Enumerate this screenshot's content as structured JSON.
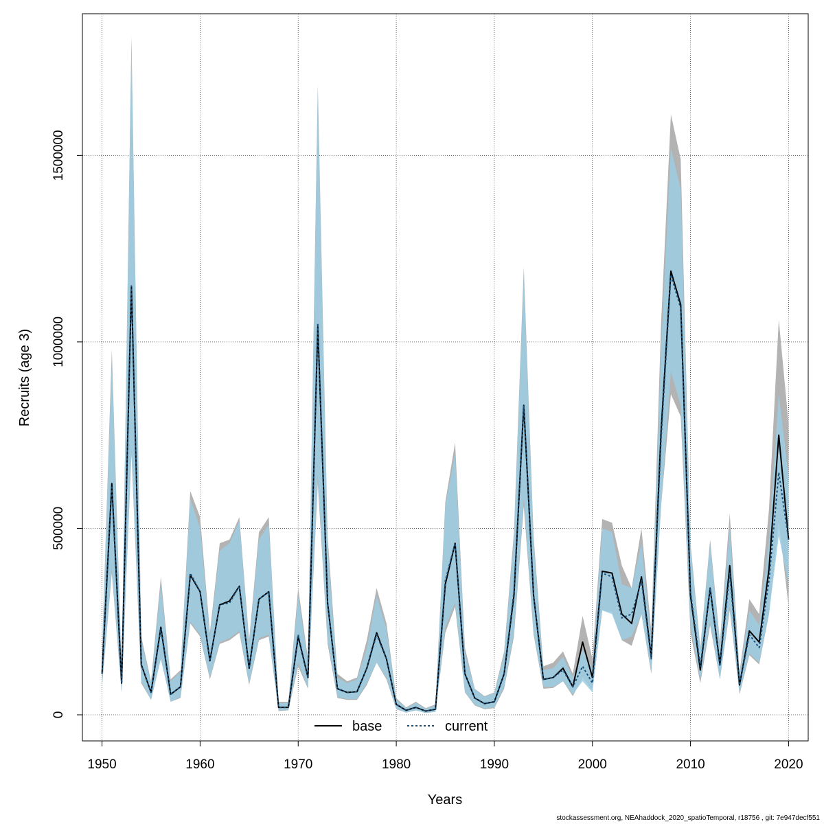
{
  "chart_data": {
    "type": "line",
    "title": "",
    "xlabel": "Years",
    "ylabel": "Recruits (age 3)",
    "xlim": [
      1948,
      2022
    ],
    "ylim": [
      -70000,
      1880000
    ],
    "xticks": [
      1950,
      1960,
      1970,
      1980,
      1990,
      2000,
      2010,
      2020
    ],
    "yticks": [
      0,
      500000,
      1000000,
      1500000
    ],
    "ytick_labels": [
      "0",
      "500000",
      "1000000",
      "1500000"
    ],
    "grid": true,
    "legend_position": "bottom-center",
    "x": [
      1950,
      1951,
      1952,
      1953,
      1954,
      1955,
      1956,
      1957,
      1958,
      1959,
      1960,
      1961,
      1962,
      1963,
      1964,
      1965,
      1966,
      1967,
      1968,
      1969,
      1970,
      1971,
      1972,
      1973,
      1974,
      1975,
      1976,
      1977,
      1978,
      1979,
      1980,
      1981,
      1982,
      1983,
      1984,
      1985,
      1986,
      1987,
      1988,
      1989,
      1990,
      1991,
      1992,
      1993,
      1994,
      1995,
      1996,
      1997,
      1998,
      1999,
      2000,
      2001,
      2002,
      2003,
      2004,
      2005,
      2006,
      2007,
      2008,
      2009,
      2010,
      2011,
      2012,
      2013,
      2014,
      2015,
      2016,
      2017,
      2018,
      2019,
      2020
    ],
    "series": [
      {
        "name": "base",
        "color": "#000000",
        "linestyle": "solid",
        "band_color": "#b3b3b3",
        "values": [
          110000,
          620000,
          85000,
          1150000,
          135000,
          60000,
          235000,
          55000,
          75000,
          375000,
          330000,
          145000,
          295000,
          305000,
          345000,
          125000,
          310000,
          330000,
          20000,
          20000,
          210000,
          100000,
          1040000,
          300000,
          70000,
          60000,
          62000,
          125000,
          220000,
          150000,
          28000,
          12000,
          20000,
          10000,
          15000,
          350000,
          460000,
          110000,
          45000,
          30000,
          35000,
          110000,
          320000,
          830000,
          320000,
          95000,
          100000,
          125000,
          75000,
          195000,
          100000,
          385000,
          380000,
          270000,
          245000,
          370000,
          155000,
          760000,
          1190000,
          1100000,
          320000,
          120000,
          340000,
          135000,
          400000,
          80000,
          225000,
          195000,
          390000,
          750000,
          470000
        ],
        "lower": [
          75000,
          380000,
          60000,
          700000,
          85000,
          40000,
          150000,
          35000,
          45000,
          245000,
          210000,
          95000,
          190000,
          200000,
          220000,
          80000,
          200000,
          210000,
          10000,
          12000,
          130000,
          70000,
          620000,
          190000,
          45000,
          40000,
          40000,
          80000,
          140000,
          95000,
          15000,
          6000,
          12000,
          5000,
          8000,
          220000,
          290000,
          60000,
          25000,
          15000,
          18000,
          70000,
          210000,
          560000,
          215000,
          70000,
          72000,
          90000,
          50000,
          100000,
          65000,
          280000,
          275000,
          200000,
          185000,
          270000,
          110000,
          560000,
          860000,
          800000,
          220000,
          85000,
          240000,
          95000,
          280000,
          55000,
          160000,
          135000,
          270000,
          520000,
          290000
        ],
        "upper": [
          170000,
          980000,
          120000,
          1820000,
          210000,
          90000,
          370000,
          95000,
          120000,
          600000,
          530000,
          220000,
          460000,
          470000,
          530000,
          200000,
          490000,
          530000,
          35000,
          35000,
          340000,
          150000,
          1690000,
          480000,
          110000,
          90000,
          100000,
          200000,
          340000,
          245000,
          45000,
          20000,
          35000,
          18000,
          28000,
          570000,
          730000,
          180000,
          70000,
          50000,
          60000,
          170000,
          490000,
          1200000,
          480000,
          130000,
          140000,
          170000,
          110000,
          265000,
          150000,
          525000,
          515000,
          400000,
          340000,
          500000,
          225000,
          1050000,
          1610000,
          1490000,
          460000,
          180000,
          470000,
          195000,
          540000,
          115000,
          310000,
          270000,
          550000,
          1060000,
          780000
        ]
      },
      {
        "name": "current",
        "color": "#1a4f7a",
        "linestyle": "dotted",
        "band_color": "#9ccde3",
        "values": [
          110000,
          610000,
          85000,
          1150000,
          135000,
          60000,
          230000,
          55000,
          75000,
          380000,
          330000,
          145000,
          295000,
          300000,
          345000,
          125000,
          310000,
          330000,
          20000,
          20000,
          215000,
          100000,
          1050000,
          300000,
          70000,
          60000,
          62000,
          125000,
          215000,
          150000,
          28000,
          12000,
          20000,
          10000,
          15000,
          360000,
          460000,
          110000,
          45000,
          30000,
          35000,
          110000,
          330000,
          830000,
          320000,
          95000,
          100000,
          120000,
          75000,
          130000,
          85000,
          380000,
          370000,
          260000,
          270000,
          360000,
          150000,
          740000,
          1180000,
          1090000,
          330000,
          130000,
          340000,
          130000,
          380000,
          80000,
          215000,
          180000,
          360000,
          650000,
          470000
        ],
        "lower": [
          80000,
          390000,
          60000,
          710000,
          90000,
          40000,
          150000,
          35000,
          48000,
          250000,
          215000,
          100000,
          195000,
          205000,
          225000,
          85000,
          205000,
          215000,
          12000,
          13000,
          140000,
          72000,
          640000,
          200000,
          48000,
          42000,
          42000,
          85000,
          140000,
          100000,
          16000,
          6000,
          12000,
          5000,
          8000,
          235000,
          300000,
          62000,
          27000,
          17000,
          20000,
          75000,
          220000,
          580000,
          220000,
          75000,
          75000,
          90000,
          55000,
          90000,
          60000,
          280000,
          270000,
          200000,
          210000,
          270000,
          115000,
          560000,
          920000,
          830000,
          240000,
          95000,
          250000,
          95000,
          290000,
          58000,
          165000,
          140000,
          270000,
          480000,
          350000
        ],
        "upper": [
          160000,
          950000,
          115000,
          1800000,
          200000,
          85000,
          350000,
          90000,
          115000,
          580000,
          500000,
          210000,
          440000,
          460000,
          520000,
          190000,
          470000,
          510000,
          32000,
          32000,
          320000,
          140000,
          1670000,
          450000,
          100000,
          85000,
          95000,
          180000,
          320000,
          230000,
          40000,
          18000,
          32000,
          16000,
          25000,
          560000,
          700000,
          165000,
          68000,
          48000,
          58000,
          160000,
          470000,
          1180000,
          460000,
          120000,
          125000,
          155000,
          100000,
          175000,
          125000,
          500000,
          490000,
          350000,
          340000,
          460000,
          200000,
          980000,
          1520000,
          1410000,
          450000,
          175000,
          460000,
          185000,
          500000,
          110000,
          280000,
          240000,
          470000,
          860000,
          640000
        ]
      }
    ]
  },
  "footer": "stockassessment.org, NEAhaddock_2020_spatioTemporal, r18756 , git: 7e947decf551"
}
